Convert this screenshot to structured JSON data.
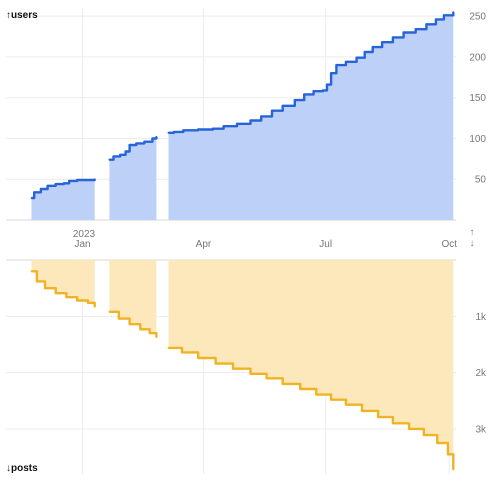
{
  "chart_data": [
    {
      "type": "area",
      "panel": "top",
      "ylabel": "↑users",
      "y_direction": "up",
      "ylim": [
        0,
        260
      ],
      "yticks": [
        50,
        100,
        150,
        200,
        250
      ],
      "ytick_labels": [
        "50",
        "100",
        "150",
        "200",
        "250"
      ],
      "y_arrow": "↑",
      "color": "#2764d9",
      "fill": "#bcd0f8",
      "xlim": [
        "2022-11-05",
        "2023-10-06"
      ],
      "xticks": [
        "2023-01-01",
        "2023-04-01",
        "2023-07-01",
        "2023-10-01"
      ],
      "xtick_labels": [
        "Jan",
        "Apr",
        "Jul",
        "Oct"
      ],
      "xtick_year_label": "2023",
      "grid": true,
      "segments": [
        [
          [
            "2022-11-24",
            27
          ],
          [
            "2022-11-26",
            34
          ],
          [
            "2022-12-01",
            38
          ],
          [
            "2022-12-06",
            42
          ],
          [
            "2022-12-12",
            44
          ],
          [
            "2022-12-18",
            45
          ],
          [
            "2022-12-22",
            48
          ],
          [
            "2022-12-28",
            49
          ],
          [
            "2023-01-04",
            49
          ],
          [
            "2023-01-10",
            50
          ]
        ],
        [
          [
            "2023-01-21",
            74
          ],
          [
            "2023-01-24",
            78
          ],
          [
            "2023-01-29",
            80
          ],
          [
            "2023-02-02",
            84
          ],
          [
            "2023-02-05",
            92
          ],
          [
            "2023-02-10",
            94
          ],
          [
            "2023-02-16",
            96
          ],
          [
            "2023-02-22",
            100
          ],
          [
            "2023-02-25",
            102
          ]
        ],
        [
          [
            "2023-03-06",
            107
          ],
          [
            "2023-03-10",
            108
          ],
          [
            "2023-03-17",
            110
          ],
          [
            "2023-03-28",
            111
          ],
          [
            "2023-04-08",
            112
          ],
          [
            "2023-04-16",
            115
          ],
          [
            "2023-04-26",
            118
          ],
          [
            "2023-05-06",
            122
          ],
          [
            "2023-05-14",
            127
          ],
          [
            "2023-05-22",
            134
          ],
          [
            "2023-05-30",
            140
          ],
          [
            "2023-06-08",
            147
          ],
          [
            "2023-06-15",
            154
          ],
          [
            "2023-06-22",
            158
          ],
          [
            "2023-06-29",
            159
          ],
          [
            "2023-07-02",
            166
          ],
          [
            "2023-07-05",
            180
          ],
          [
            "2023-07-09",
            190
          ],
          [
            "2023-07-16",
            194
          ],
          [
            "2023-07-24",
            199
          ],
          [
            "2023-07-30",
            206
          ],
          [
            "2023-08-05",
            212
          ],
          [
            "2023-08-12",
            218
          ],
          [
            "2023-08-20",
            224
          ],
          [
            "2023-08-28",
            230
          ],
          [
            "2023-09-06",
            234
          ],
          [
            "2023-09-14",
            240
          ],
          [
            "2023-09-21",
            246
          ],
          [
            "2023-09-27",
            251
          ],
          [
            "2023-10-04",
            255
          ]
        ]
      ]
    },
    {
      "type": "area",
      "panel": "bottom",
      "ylabel": "↓posts",
      "y_direction": "down",
      "ylim": [
        0,
        3800
      ],
      "yticks": [
        1000,
        2000,
        3000
      ],
      "ytick_labels": [
        "1k",
        "2k",
        "3k"
      ],
      "y_arrow": "↓",
      "color": "#f0b323",
      "fill": "#fde8bb",
      "grid": true,
      "segments": [
        [
          [
            "2022-11-24",
            200
          ],
          [
            "2022-11-28",
            380
          ],
          [
            "2022-12-04",
            500
          ],
          [
            "2022-12-12",
            590
          ],
          [
            "2022-12-20",
            660
          ],
          [
            "2022-12-28",
            720
          ],
          [
            "2023-01-05",
            760
          ],
          [
            "2023-01-10",
            830
          ]
        ],
        [
          [
            "2023-01-21",
            920
          ],
          [
            "2023-01-28",
            1040
          ],
          [
            "2023-02-05",
            1140
          ],
          [
            "2023-02-13",
            1230
          ],
          [
            "2023-02-20",
            1300
          ],
          [
            "2023-02-25",
            1370
          ]
        ],
        [
          [
            "2023-03-06",
            1560
          ],
          [
            "2023-03-16",
            1640
          ],
          [
            "2023-03-28",
            1740
          ],
          [
            "2023-04-10",
            1840
          ],
          [
            "2023-04-23",
            1930
          ],
          [
            "2023-05-06",
            2020
          ],
          [
            "2023-05-18",
            2100
          ],
          [
            "2023-05-30",
            2200
          ],
          [
            "2023-06-12",
            2290
          ],
          [
            "2023-06-24",
            2390
          ],
          [
            "2023-07-05",
            2480
          ],
          [
            "2023-07-16",
            2570
          ],
          [
            "2023-07-28",
            2680
          ],
          [
            "2023-08-09",
            2790
          ],
          [
            "2023-08-20",
            2900
          ],
          [
            "2023-09-01",
            3000
          ],
          [
            "2023-09-12",
            3110
          ],
          [
            "2023-09-22",
            3250
          ],
          [
            "2023-09-30",
            3450
          ],
          [
            "2023-10-04",
            3720
          ]
        ]
      ]
    }
  ]
}
